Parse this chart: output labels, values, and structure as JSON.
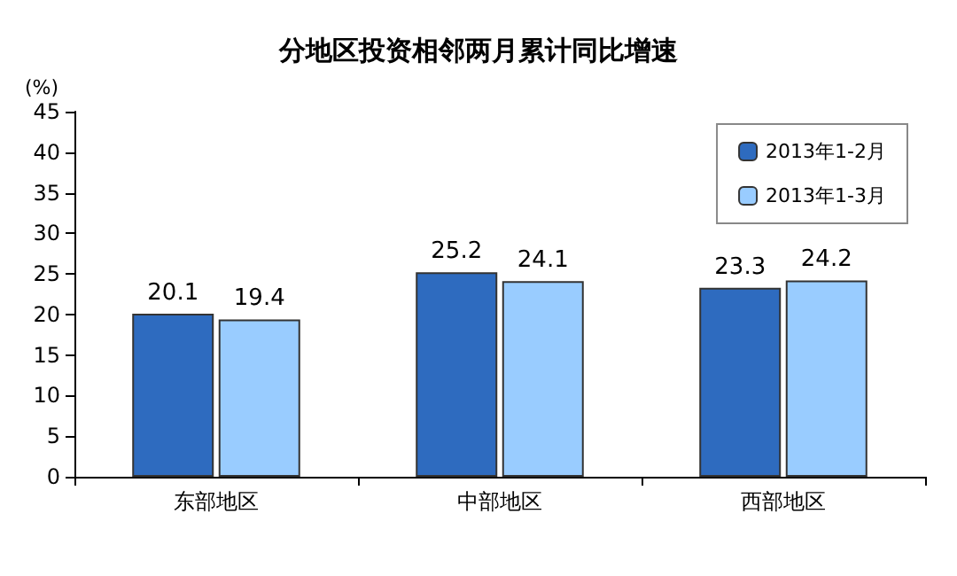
{
  "chart_data": {
    "type": "bar",
    "title": "分地区投资相邻两月累计同比增速",
    "ylabel": "(%)",
    "categories": [
      "东部地区",
      "中部地区",
      "西部地区"
    ],
    "series": [
      {
        "name": "2013年1-2月",
        "color": "#2e6bbf",
        "values": [
          20.1,
          25.2,
          23.3
        ]
      },
      {
        "name": "2013年1-3月",
        "color": "#99ccff",
        "values": [
          19.4,
          24.1,
          24.2
        ]
      }
    ],
    "ylim": [
      0,
      45
    ],
    "yticks": [
      0,
      5,
      10,
      15,
      20,
      25,
      30,
      35,
      40,
      45
    ],
    "grid": false,
    "legend": "top right",
    "data_labels": true
  }
}
